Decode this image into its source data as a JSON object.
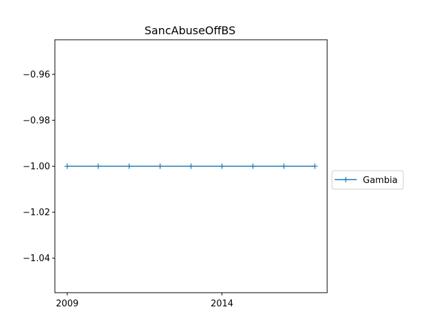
{
  "chart_data": {
    "type": "line",
    "title": "SancAbuseOffBS",
    "xlabel": "",
    "ylabel": "",
    "x": [
      2009,
      2010,
      2011,
      2012,
      2013,
      2014,
      2015,
      2016,
      2017
    ],
    "xlim": [
      2008.6,
      2017.4
    ],
    "x_ticks": [
      2009,
      2014
    ],
    "x_tick_labels": [
      "2009",
      "2014"
    ],
    "ylim": [
      -1.055,
      -0.945
    ],
    "y_ticks": [
      -0.96,
      -0.98,
      -1.0,
      -1.02,
      -1.04
    ],
    "y_tick_labels": [
      "−0.96",
      "−0.98",
      "−1.00",
      "−1.02",
      "−1.04"
    ],
    "grid": false,
    "legend_position": "center-right outside",
    "series": [
      {
        "name": "Gambia",
        "color": "#1f77b4",
        "marker": "plus",
        "values": [
          -1,
          -1,
          -1,
          -1,
          -1,
          -1,
          -1,
          -1,
          -1
        ]
      }
    ]
  }
}
